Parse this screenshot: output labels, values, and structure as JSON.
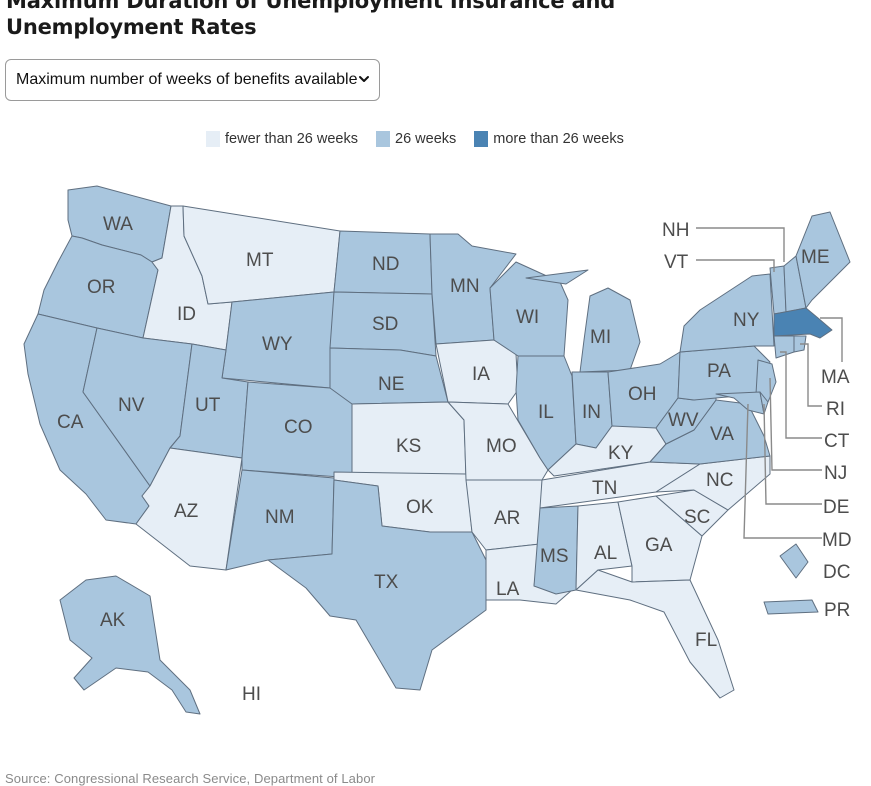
{
  "title": {
    "line1": "Maximum Duration of Unemployment Insurance and",
    "line2": "Unemployment Rates"
  },
  "selector": {
    "selected": "Maximum number of weeks of benefits available",
    "icon": "chevron-down-icon"
  },
  "legend": {
    "items": [
      {
        "label": "fewer than 26 weeks",
        "color": "#e6eef6"
      },
      {
        "label": "26 weeks",
        "color": "#a9c6de"
      },
      {
        "label": "more than 26 weeks",
        "color": "#4a83b3"
      }
    ]
  },
  "map": {
    "categories": {
      "fewer": "fewer than 26 weeks",
      "weeks26": "26 weeks",
      "more": "more than 26 weeks"
    },
    "states": [
      {
        "code": "WA",
        "cat": "weeks26"
      },
      {
        "code": "OR",
        "cat": "weeks26"
      },
      {
        "code": "CA",
        "cat": "weeks26"
      },
      {
        "code": "ID",
        "cat": "fewer"
      },
      {
        "code": "NV",
        "cat": "weeks26"
      },
      {
        "code": "MT",
        "cat": "fewer"
      },
      {
        "code": "WY",
        "cat": "weeks26"
      },
      {
        "code": "UT",
        "cat": "weeks26"
      },
      {
        "code": "AZ",
        "cat": "fewer"
      },
      {
        "code": "CO",
        "cat": "weeks26"
      },
      {
        "code": "NM",
        "cat": "weeks26"
      },
      {
        "code": "ND",
        "cat": "weeks26"
      },
      {
        "code": "SD",
        "cat": "weeks26"
      },
      {
        "code": "NE",
        "cat": "weeks26"
      },
      {
        "code": "KS",
        "cat": "fewer"
      },
      {
        "code": "OK",
        "cat": "fewer"
      },
      {
        "code": "TX",
        "cat": "weeks26"
      },
      {
        "code": "MN",
        "cat": "weeks26"
      },
      {
        "code": "IA",
        "cat": "fewer"
      },
      {
        "code": "MO",
        "cat": "fewer"
      },
      {
        "code": "AR",
        "cat": "fewer"
      },
      {
        "code": "LA",
        "cat": "fewer"
      },
      {
        "code": "WI",
        "cat": "weeks26"
      },
      {
        "code": "IL",
        "cat": "weeks26"
      },
      {
        "code": "MI",
        "cat": "weeks26"
      },
      {
        "code": "IN",
        "cat": "weeks26"
      },
      {
        "code": "OH",
        "cat": "weeks26"
      },
      {
        "code": "KY",
        "cat": "fewer"
      },
      {
        "code": "TN",
        "cat": "fewer"
      },
      {
        "code": "MS",
        "cat": "weeks26"
      },
      {
        "code": "AL",
        "cat": "fewer"
      },
      {
        "code": "GA",
        "cat": "fewer"
      },
      {
        "code": "FL",
        "cat": "fewer"
      },
      {
        "code": "SC",
        "cat": "fewer"
      },
      {
        "code": "NC",
        "cat": "fewer"
      },
      {
        "code": "VA",
        "cat": "weeks26"
      },
      {
        "code": "WV",
        "cat": "weeks26"
      },
      {
        "code": "PA",
        "cat": "weeks26"
      },
      {
        "code": "NY",
        "cat": "weeks26"
      },
      {
        "code": "VT",
        "cat": "weeks26"
      },
      {
        "code": "NH",
        "cat": "weeks26"
      },
      {
        "code": "ME",
        "cat": "weeks26"
      },
      {
        "code": "MA",
        "cat": "more"
      },
      {
        "code": "RI",
        "cat": "weeks26"
      },
      {
        "code": "CT",
        "cat": "weeks26"
      },
      {
        "code": "NJ",
        "cat": "weeks26"
      },
      {
        "code": "DE",
        "cat": "weeks26"
      },
      {
        "code": "MD",
        "cat": "weeks26"
      },
      {
        "code": "DC",
        "cat": "weeks26"
      },
      {
        "code": "PR",
        "cat": "weeks26"
      },
      {
        "code": "AK",
        "cat": "weeks26"
      },
      {
        "code": "HI",
        "cat": "fewer"
      }
    ]
  },
  "source": "Source: Congressional Research Service, Department of Labor"
}
